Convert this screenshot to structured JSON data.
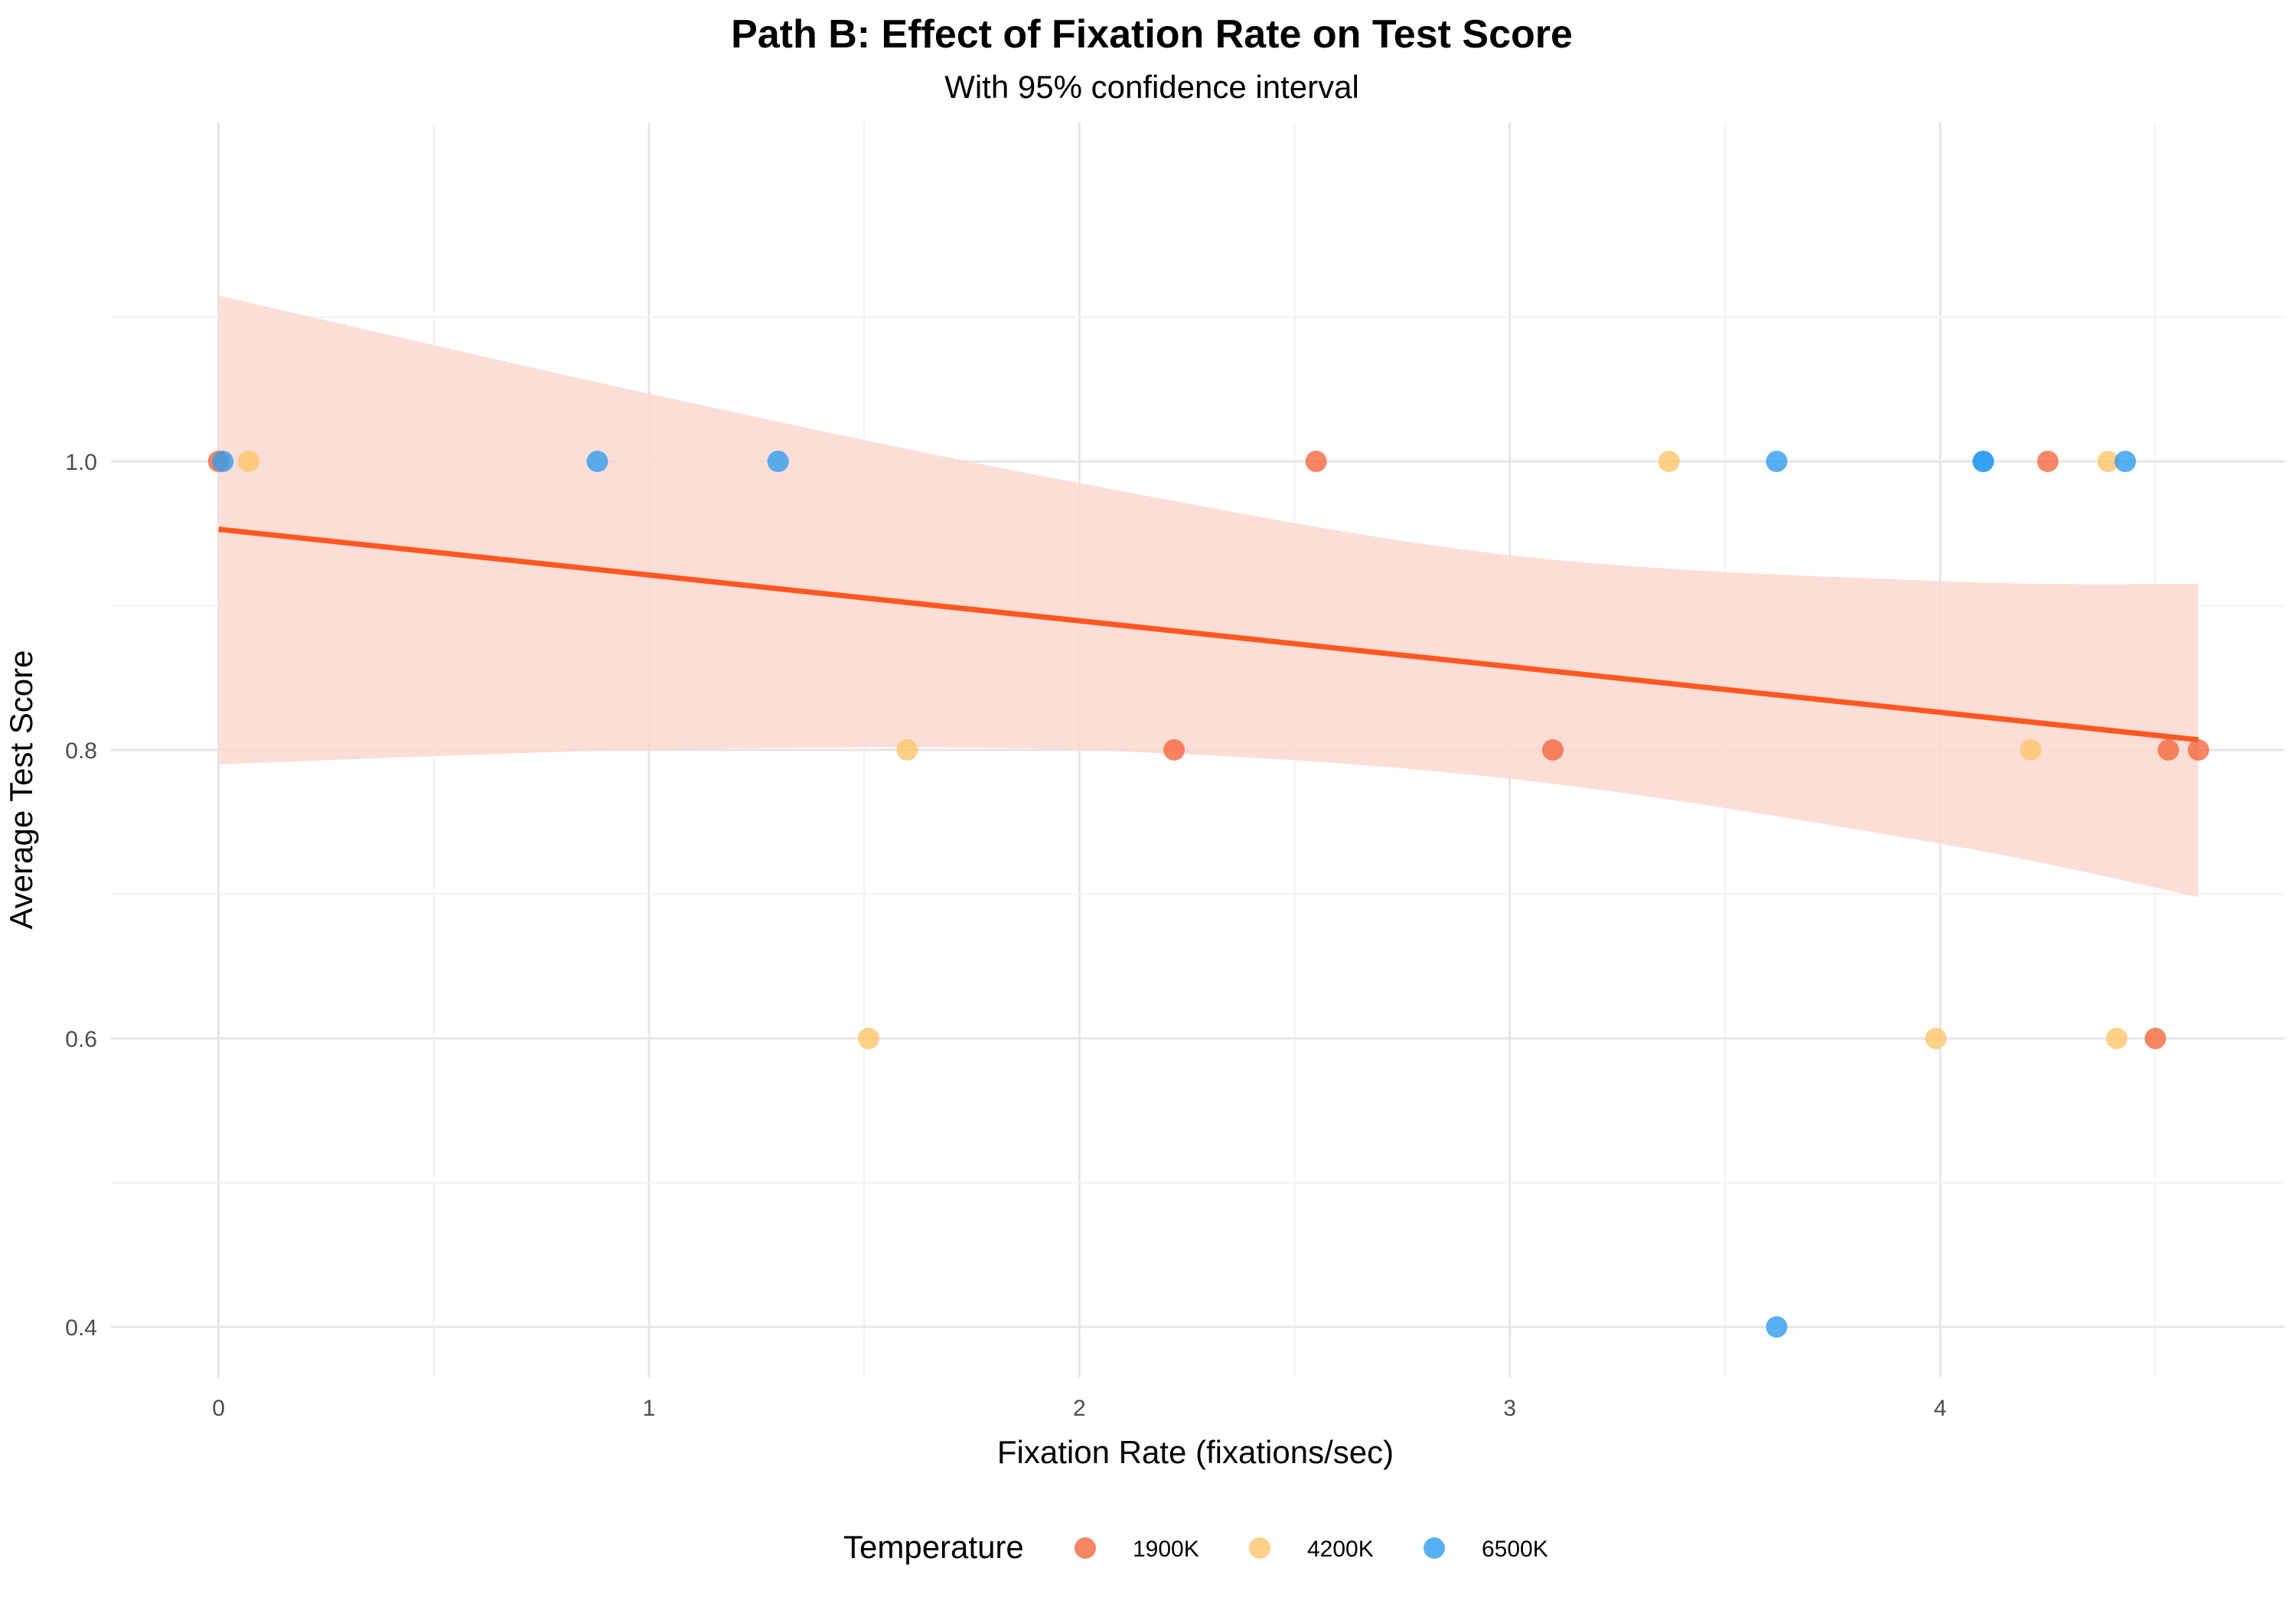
{
  "chart_data": {
    "type": "scatter",
    "title": "Path B: Effect of Fixation Rate on Test Score",
    "subtitle": "With 95% confidence interval",
    "xlabel": "Fixation Rate (fixations/sec)",
    "ylabel": "Average Test Score",
    "xlim": [
      -0.25,
      4.8
    ],
    "ylim": [
      0.365,
      1.235
    ],
    "x_ticks": [
      "0",
      "1",
      "2",
      "3",
      "4"
    ],
    "y_ticks": [
      "0.4",
      "0.6",
      "0.8",
      "1.0"
    ],
    "grid": true,
    "legend": {
      "title": "Temperature",
      "position": "bottom",
      "entries": [
        "1900K",
        "4200K",
        "6500K"
      ]
    },
    "colors": {
      "1900K": "#f4683d",
      "4200K": "#fec46a",
      "6500K": "#2e9cf0",
      "fit_line": "#fe5722",
      "ci_band": "#fcd8cf"
    },
    "series": [
      {
        "name": "1900K",
        "points": [
          {
            "x": 0.0,
            "y": 1.0
          },
          {
            "x": 2.55,
            "y": 1.0
          },
          {
            "x": 4.25,
            "y": 1.0
          },
          {
            "x": 2.22,
            "y": 0.8
          },
          {
            "x": 3.1,
            "y": 0.8
          },
          {
            "x": 4.53,
            "y": 0.8
          },
          {
            "x": 4.6,
            "y": 0.8
          },
          {
            "x": 4.5,
            "y": 0.6
          }
        ]
      },
      {
        "name": "4200K",
        "points": [
          {
            "x": 0.07,
            "y": 1.0
          },
          {
            "x": 3.37,
            "y": 1.0
          },
          {
            "x": 4.39,
            "y": 1.0
          },
          {
            "x": 1.6,
            "y": 0.8
          },
          {
            "x": 4.21,
            "y": 0.8
          },
          {
            "x": 1.51,
            "y": 0.6
          },
          {
            "x": 3.99,
            "y": 0.6
          },
          {
            "x": 4.41,
            "y": 0.6
          }
        ]
      },
      {
        "name": "6500K",
        "points": [
          {
            "x": 0.01,
            "y": 1.0
          },
          {
            "x": 0.88,
            "y": 1.0
          },
          {
            "x": 1.3,
            "y": 1.0
          },
          {
            "x": 3.62,
            "y": 1.0
          },
          {
            "x": 4.1,
            "y": 1.0
          },
          {
            "x": 4.1,
            "y": 1.0
          },
          {
            "x": 4.43,
            "y": 1.0
          },
          {
            "x": 3.62,
            "y": 0.4
          }
        ]
      }
    ],
    "fit": {
      "x_start": 0.0,
      "x_end": 4.6,
      "y_start": 0.953,
      "y_end": 0.807,
      "ci_upper": [
        [
          0.0,
          1.115
        ],
        [
          1.0,
          1.047
        ],
        [
          2.0,
          0.985
        ],
        [
          3.0,
          0.935
        ],
        [
          4.0,
          0.917
        ],
        [
          4.6,
          0.915
        ]
      ],
      "ci_lower": [
        [
          0.0,
          0.79
        ],
        [
          1.0,
          0.8
        ],
        [
          2.0,
          0.8
        ],
        [
          3.0,
          0.78
        ],
        [
          4.0,
          0.735
        ],
        [
          4.6,
          0.698
        ]
      ]
    }
  }
}
